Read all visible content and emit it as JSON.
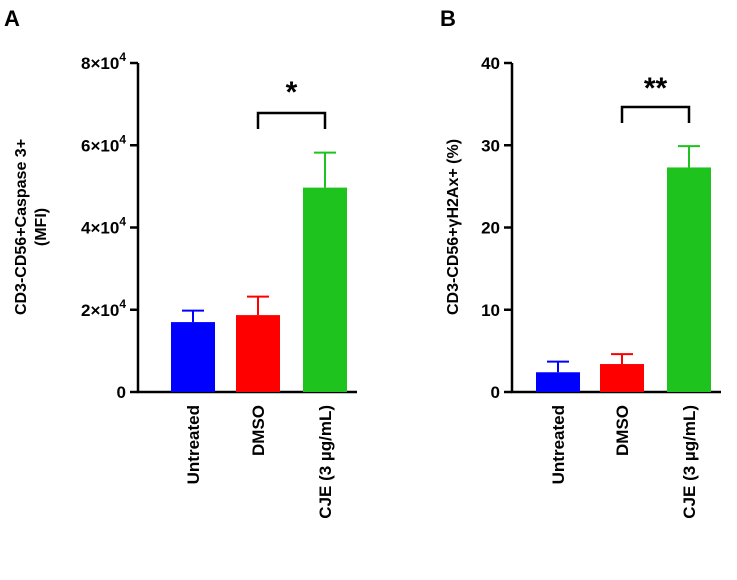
{
  "chart_data": [
    {
      "type": "bar",
      "panel": "A",
      "categories": [
        "Untreated",
        "DMSO",
        "CJE (3 µg/mL)"
      ],
      "values": [
        17000,
        18700,
        49700
      ],
      "errors": [
        2800,
        4500,
        8500
      ],
      "colors": [
        "#0000ff",
        "#ff0000",
        "#1ec31e"
      ],
      "ylabel_lines": [
        "CD3-CD56+Caspase 3+",
        "(MFI)"
      ],
      "ylim": [
        0,
        80000
      ],
      "yticks": [
        0,
        20000,
        40000,
        60000,
        80000
      ],
      "ytick_labels": [
        {
          "mant": "0",
          "exp": ""
        },
        {
          "mant": "2×10",
          "exp": "4"
        },
        {
          "mant": "4×10",
          "exp": "4"
        },
        {
          "mant": "6×10",
          "exp": "4"
        },
        {
          "mant": "8×10",
          "exp": "4"
        }
      ],
      "significance": {
        "from": 1,
        "to": 2,
        "label": "*"
      }
    },
    {
      "type": "bar",
      "panel": "B",
      "categories": [
        "Untreated",
        "DMSO",
        "CJE (3 µg/mL)"
      ],
      "values": [
        2.4,
        3.4,
        27.3
      ],
      "errors": [
        1.3,
        1.2,
        2.6
      ],
      "colors": [
        "#0000ff",
        "#ff0000",
        "#1ec31e"
      ],
      "ylabel_lines": [
        "CD3-CD56+γH2Ax+ (%)"
      ],
      "ylim": [
        0,
        40
      ],
      "yticks": [
        0,
        10,
        20,
        30,
        40
      ],
      "ytick_labels": [
        {
          "mant": "0",
          "exp": ""
        },
        {
          "mant": "10",
          "exp": ""
        },
        {
          "mant": "20",
          "exp": ""
        },
        {
          "mant": "30",
          "exp": ""
        },
        {
          "mant": "40",
          "exp": ""
        }
      ],
      "significance": {
        "from": 1,
        "to": 2,
        "label": "**"
      }
    }
  ]
}
